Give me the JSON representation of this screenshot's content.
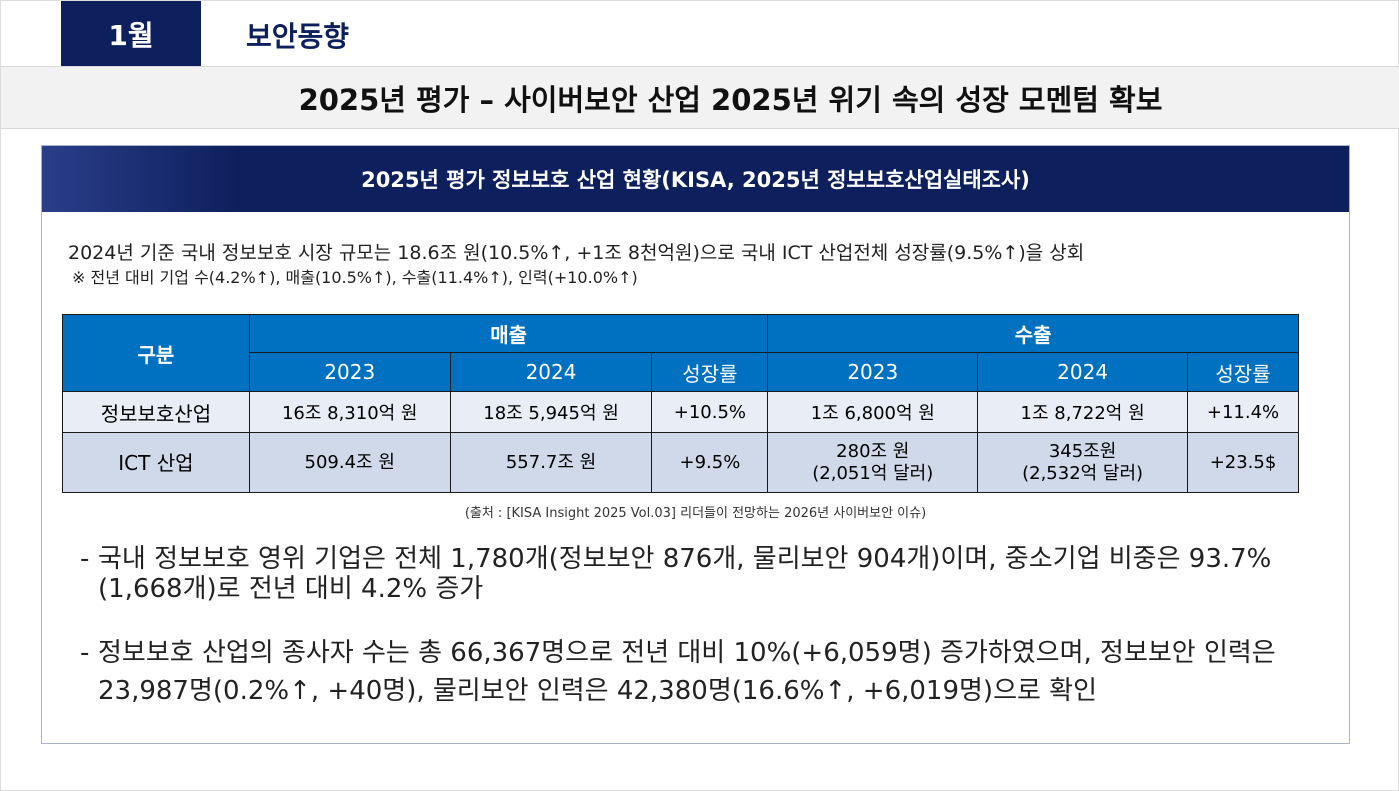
{
  "header": {
    "month": "1월",
    "section": "보안동향",
    "title": "2025년 평가 – 사이버보안 산업 2025년 위기 속의 성장 모멘텀 확보"
  },
  "panel": {
    "heading": "2025년 평가 정보보호 산업 현황(KISA, 2025년 정보보호산업실태조사)",
    "intro": "2024년 기준 국내 정보보호 시장 규모는 18.6조 원(10.5%↑, +1조 8천억원)으로 국내 ICT 산업전체 성장률(9.5%↑)을 상회",
    "note": "※ 전년 대비 기업 수(4.2%↑), 매출(10.5%↑), 수출(11.4%↑), 인력(+10.0%↑)",
    "table": {
      "col0": "구분",
      "group1": "매출",
      "group2": "수출",
      "sub": [
        "2023",
        "2024",
        "성장률",
        "2023",
        "2024",
        "성장률"
      ],
      "rows": [
        {
          "label": "정보보호산업",
          "cells": [
            "16조 8,310억 원",
            "18조 5,945억 원",
            "+10.5%",
            "1조 6,800억 원",
            "1조 8,722억 원",
            "+11.4%"
          ]
        },
        {
          "label": "ICT 산업",
          "cells": [
            "509.4조 원",
            "557.7조 원",
            "+9.5%",
            "280조 원\n(2,051억 달러)",
            "345조원\n(2,532억 달러)",
            "+23.5$"
          ]
        }
      ]
    },
    "source": "(출처 : [KISA Insight 2025 Vol.03] 리더들이 전망하는 2026년 사이버보안 이슈)",
    "bullets": [
      "국내 정보보호 영위 기업은 전체 1,780개(정보보안 876개, 물리보안 904개)이며, 중소기업 비중은 93.7%(1,668개)로 전년 대비 4.2% 증가",
      "정보보호 산업의 종사자 수는 총 66,367명으로 전년 대비 10%(+6,059명) 증가하였으며, 정보보안 인력은 23,987명(0.2%↑, +40명), 물리보안 인력은 42,380명(16.6%↑, +6,019명)으로 확인"
    ]
  },
  "colors": {
    "navy": "#0d1f5c",
    "table_header": "#0070c0",
    "row1": "#e9edf6",
    "row2": "#cfd9ea"
  }
}
